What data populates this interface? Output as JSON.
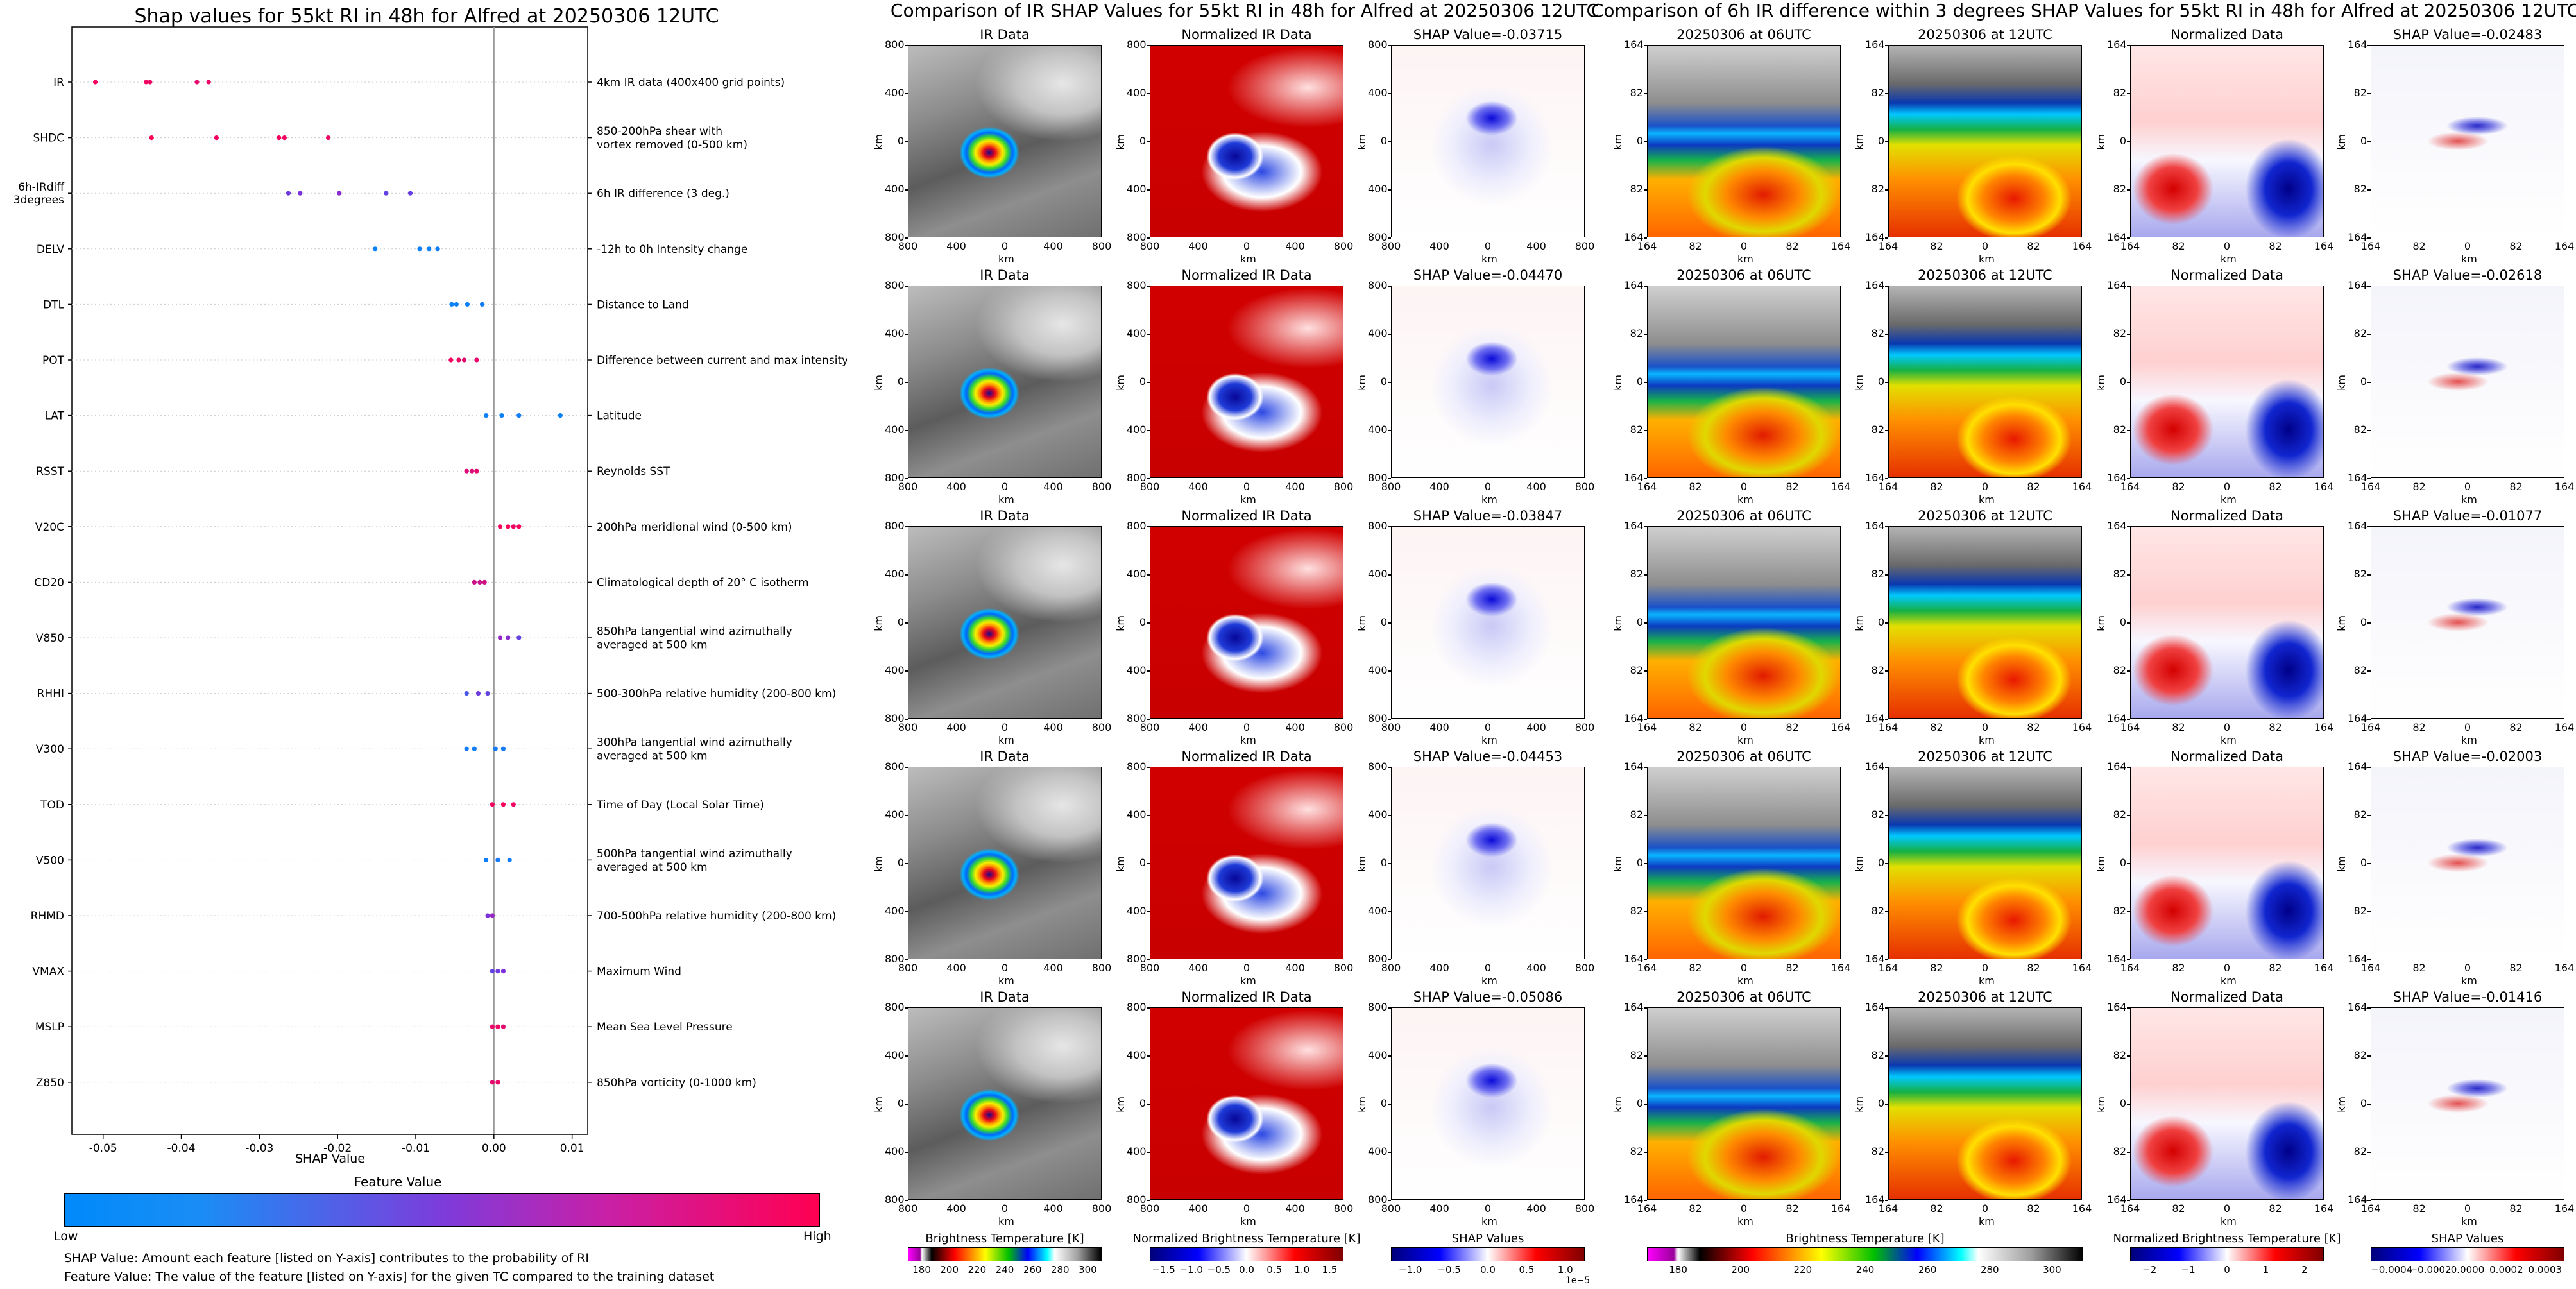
{
  "chart_data": [
    {
      "type": "scatter",
      "title": "Shap values for 55kt RI in 48h for Alfred at 20250306 12UTC",
      "xlabel": "SHAP Value",
      "xlim": [
        -0.054,
        0.012
      ],
      "xticks": [
        "-0.05",
        "-0.04",
        "-0.03",
        "-0.02",
        "-0.01",
        "0.00",
        "0.01"
      ],
      "xtick_values": [
        -0.05,
        -0.04,
        -0.03,
        -0.02,
        -0.01,
        0.0,
        0.01
      ],
      "features": [
        {
          "name": "IR",
          "desc": "4km IR data (400x400 grid points)",
          "values": [
            -0.051,
            -0.0445,
            -0.044,
            -0.038,
            -0.0365
          ],
          "fv": [
            0.95,
            0.95,
            0.93,
            0.9,
            0.92
          ]
        },
        {
          "name": "SHDC",
          "desc": "850-200hPa shear with\nvortex removed (0-500 km)",
          "values": [
            -0.0438,
            -0.0355,
            -0.0275,
            -0.0268,
            -0.0212
          ],
          "fv": [
            0.97,
            0.95,
            0.96,
            0.94,
            0.93
          ]
        },
        {
          "name": "6h-IRdiff\n3degrees",
          "desc": "6h IR difference (3 deg.)",
          "values": [
            -0.0263,
            -0.0248,
            -0.0198,
            -0.0138,
            -0.0107
          ],
          "fv": [
            0.45,
            0.5,
            0.55,
            0.4,
            0.42
          ]
        },
        {
          "name": "DELV",
          "desc": "-12h to 0h Intensity change",
          "values": [
            -0.0152,
            -0.0095,
            -0.0083,
            -0.0072
          ],
          "fv": [
            0.05,
            0.05,
            0.04,
            0.06
          ]
        },
        {
          "name": "DTL",
          "desc": "Distance to Land",
          "values": [
            -0.0054,
            -0.0048,
            -0.0034,
            -0.0015
          ],
          "fv": [
            0.05,
            0.06,
            0.05,
            0.07
          ]
        },
        {
          "name": "POT",
          "desc": "Difference between current and max intensity",
          "values": [
            -0.0055,
            -0.0045,
            -0.0038,
            -0.0022
          ],
          "fv": [
            0.95,
            0.93,
            0.9,
            0.92
          ]
        },
        {
          "name": "LAT",
          "desc": "Latitude",
          "values": [
            -0.001,
            0.001,
            0.0032,
            0.0085
          ],
          "fv": [
            0.05,
            0.05,
            0.06,
            0.05
          ]
        },
        {
          "name": "RSST",
          "desc": "Reynolds SST",
          "values": [
            -0.0035,
            -0.0028,
            -0.0022
          ],
          "fv": [
            0.88,
            0.85,
            0.9
          ]
        },
        {
          "name": "V20C",
          "desc": "200hPa meridional wind (0-500 km)",
          "values": [
            0.0008,
            0.0018,
            0.0025,
            0.0032
          ],
          "fv": [
            0.95,
            0.97,
            0.93,
            0.96
          ]
        },
        {
          "name": "CD20",
          "desc": "Climatological depth of 20° C isotherm",
          "values": [
            -0.0025,
            -0.0018,
            -0.0012
          ],
          "fv": [
            0.8,
            0.78,
            0.82
          ]
        },
        {
          "name": "V850",
          "desc": "850hPa tangential wind azimuthally\naveraged at 500 km",
          "values": [
            0.0008,
            0.0018,
            0.0032
          ],
          "fv": [
            0.6,
            0.55,
            0.4
          ]
        },
        {
          "name": "RHHI",
          "desc": "500-300hPa relative humidity (200-800 km)",
          "values": [
            -0.0035,
            -0.002,
            -0.0008
          ],
          "fv": [
            0.3,
            0.45,
            0.4
          ]
        },
        {
          "name": "V300",
          "desc": "300hPa tangential wind azimuthally\naveraged at 500 km",
          "values": [
            -0.0035,
            -0.0025,
            0.0002,
            0.0012
          ],
          "fv": [
            0.08,
            0.07,
            0.1,
            0.09
          ]
        },
        {
          "name": "TOD",
          "desc": "Time of Day (Local Solar Time)",
          "values": [
            -0.0002,
            0.0012,
            0.0025
          ],
          "fv": [
            0.95,
            0.96,
            0.94
          ]
        },
        {
          "name": "V500",
          "desc": "500hPa tangential wind azimuthally\naveraged at 500 km",
          "values": [
            -0.001,
            0.0005,
            0.002
          ],
          "fv": [
            0.06,
            0.08,
            0.07
          ]
        },
        {
          "name": "RHMD",
          "desc": "700-500hPa relative humidity (200-800 km)",
          "values": [
            -0.0008,
            -0.0002
          ],
          "fv": [
            0.5,
            0.6
          ]
        },
        {
          "name": "VMAX",
          "desc": "Maximum Wind",
          "values": [
            -0.0002,
            0.0005,
            0.0012
          ],
          "fv": [
            0.4,
            0.45,
            0.5
          ]
        },
        {
          "name": "MSLP",
          "desc": "Mean Sea Level Pressure",
          "values": [
            -0.0002,
            0.0005,
            0.0012
          ],
          "fv": [
            0.92,
            0.94,
            0.9
          ]
        },
        {
          "name": "Z850",
          "desc": "850hPa vorticity (0-1000 km)",
          "values": [
            -0.0002,
            0.0005
          ],
          "fv": [
            0.9,
            0.92
          ]
        }
      ],
      "colorbar": {
        "label": "Feature Value",
        "low": "Low",
        "high": "High",
        "low_color": "#008afb",
        "high_color": "#ff0052"
      },
      "notes": [
        "SHAP Value: Amount each feature [listed on Y-axis] contributes to the probability of RI",
        "Feature Value: The value of the feature [listed on Y-axis] for the given TC compared to the training dataset"
      ]
    },
    {
      "type": "heatmap",
      "title": "Comparison of IR SHAP Values for 55kt RI in 48h for Alfred at 20250306 12UTC",
      "column_titles": [
        "IR Data",
        "Normalized IR Data"
      ],
      "shap_titles": [
        "SHAP Value=-0.03715",
        "SHAP Value=-0.04470",
        "SHAP Value=-0.03847",
        "SHAP Value=-0.04453",
        "SHAP Value=-0.05086"
      ],
      "axis_label": "km",
      "ticks": [
        "800",
        "400",
        "0",
        "400",
        "800"
      ],
      "colorbars": [
        {
          "label": "Brightness Temperature [K]",
          "ticks": [
            "180",
            "200",
            "220",
            "240",
            "260",
            "280",
            "300"
          ]
        },
        {
          "label": "Normalized Brightness Temperature [K]",
          "ticks": [
            "−1.5",
            "−1.0",
            "−0.5",
            "0.0",
            "0.5",
            "1.0",
            "1.5"
          ]
        },
        {
          "label": "SHAP Values",
          "ticks": [
            "−1.0",
            "−0.5",
            "0.0",
            "0.5",
            "1.0"
          ],
          "exponent": "1e−5"
        }
      ]
    },
    {
      "type": "heatmap",
      "title": "Comparison of 6h IR difference within 3 degrees SHAP Values for 55kt RI in 48h for Alfred at 20250306 12UTC",
      "column_titles": [
        "20250306 at 06UTC",
        "20250306 at 12UTC",
        "Normalized Data"
      ],
      "shap_titles": [
        "SHAP Value=-0.02483",
        "SHAP Value=-0.02618",
        "SHAP Value=-0.01077",
        "SHAP Value=-0.02003",
        "SHAP Value=-0.01416"
      ],
      "axis_label": "km",
      "ticks": [
        "164",
        "82",
        "0",
        "82",
        "164"
      ],
      "colorbars": [
        {
          "label": "Brightness Temperature [K]",
          "ticks": [
            "180",
            "200",
            "220",
            "240",
            "260",
            "280",
            "300"
          ]
        },
        {
          "label": "Normalized Brightness Temperature [K]",
          "ticks": [
            "−2",
            "−1",
            "0",
            "1",
            "2"
          ]
        },
        {
          "label": "SHAP Values",
          "ticks": [
            "−0.0004",
            "−0.0002",
            "0.0000",
            "0.0002",
            "0.0003"
          ]
        }
      ]
    }
  ]
}
